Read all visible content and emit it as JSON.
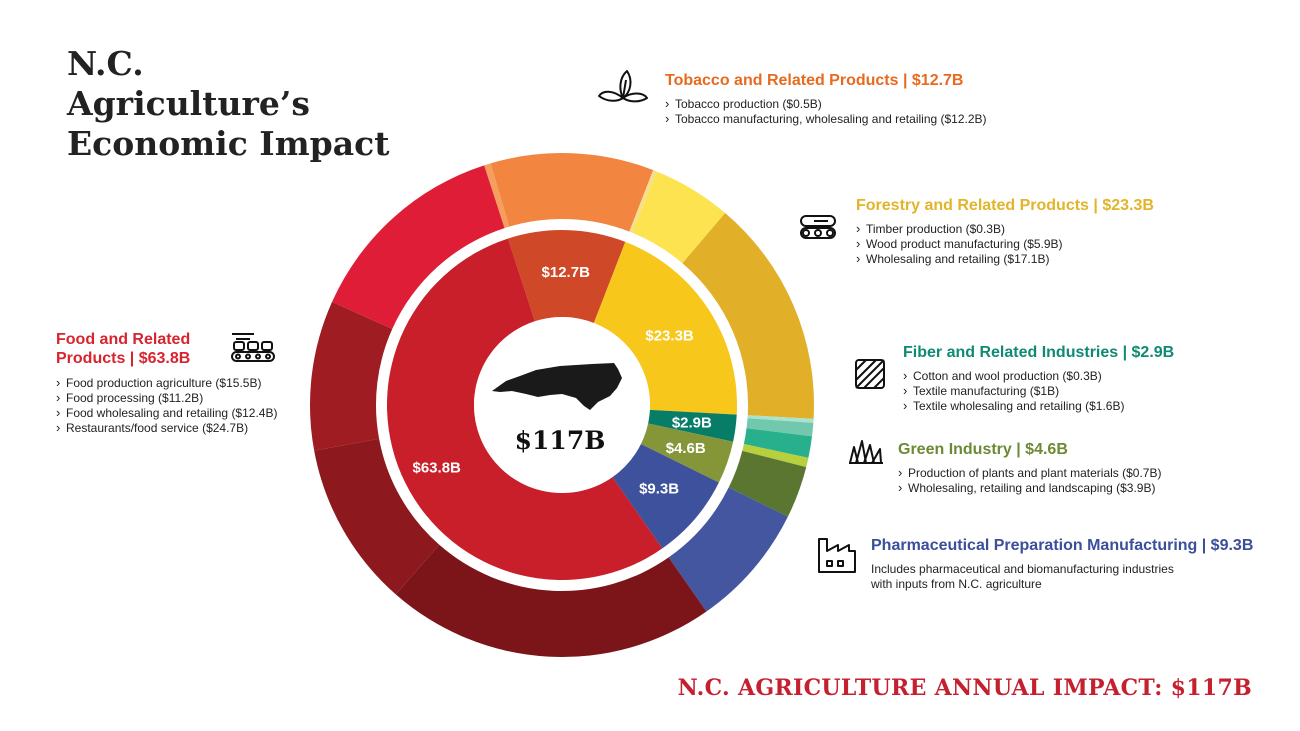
{
  "title_line1": "N.C. Agriculture’s",
  "title_line2": "Economic Impact",
  "center_value": "$117B",
  "footer": "N.C. AGRICULTURE ANNUAL IMPACT: $117B",
  "icons": {
    "tobacco": "tobacco-leaf-icon",
    "forestry": "logs-icon",
    "fiber": "fiber-icon",
    "green": "grass-icon",
    "pharma": "factory-icon",
    "food": "conveyor-icon",
    "center": "north-carolina-map-icon"
  },
  "categories_text": {
    "tobacco": {
      "title": "Tobacco and Related Products | $12.7B",
      "items": [
        "Tobacco production ($0.5B)",
        "Tobacco manufacturing, wholesaling and retailing ($12.2B)"
      ]
    },
    "forestry": {
      "title": "Forestry and Related Products | $23.3B",
      "items": [
        "Timber production ($0.3B)",
        "Wood product manufacturing ($5.9B)",
        "Wholesaling and retailing ($17.1B)"
      ]
    },
    "fiber": {
      "title": "Fiber and Related Industries | $2.9B",
      "items": [
        "Cotton and wool production ($0.3B)",
        "Textile manufacturing ($1B)",
        "Textile wholesaling and retailing ($1.6B)"
      ]
    },
    "green": {
      "title": "Green Industry | $4.6B",
      "items": [
        "Production of plants and plant materials ($0.7B)",
        "Wholesaling, retailing and landscaping ($3.9B)"
      ]
    },
    "pharma": {
      "title": "Pharmaceutical Preparation Manufacturing | $9.3B",
      "desc_line1": "Includes pharmaceutical and biomanufacturing industries",
      "desc_line2": "with inputs from N.C. agriculture"
    },
    "food": {
      "title_line1": "Food and Related",
      "title_line2": "Products | $63.8B",
      "items": [
        "Food production agriculture ($15.5B)",
        "Food processing ($11.2B)",
        "Food wholesaling and retailing ($12.4B)",
        "Restaurants/food service ($24.7B)"
      ]
    }
  },
  "colors": {
    "tobacco": "#e86a1e",
    "forestry": "#e2b42a",
    "fiber": "#0f8a73",
    "green": "#6c8a34",
    "pharma": "#3b4f9a",
    "food": "#d8242f",
    "footer": "#c4202f"
  },
  "chart_data": {
    "type": "donut",
    "total": 117,
    "inner": {
      "categories": [
        "Tobacco",
        "Forestry",
        "Fiber",
        "Green Industry",
        "Pharmaceutical",
        "Food"
      ],
      "values": [
        12.7,
        23.3,
        2.9,
        4.6,
        9.3,
        63.8
      ],
      "labels": [
        "$12.7B",
        "$23.3B",
        "$2.9B",
        "$4.6B",
        "$9.3B",
        "$63.8B"
      ],
      "colors": [
        "#cf4827",
        "#f7c71c",
        "#077d68",
        "#859639",
        "#3d519c",
        "#c81f2a"
      ]
    },
    "outer": {
      "values": [
        0.5,
        12.2,
        0.3,
        5.9,
        17.1,
        0.3,
        1.0,
        1.6,
        0.7,
        3.9,
        9.3,
        24.7,
        12.4,
        11.2,
        15.5
      ],
      "colors": [
        "#f59e5d",
        "#f2853f",
        "#f6df8c",
        "#fde350",
        "#e2af29",
        "#a8e3cf",
        "#71c8ad",
        "#28b08c",
        "#b8cf3e",
        "#5b7630",
        "#44569f",
        "#7c1519",
        "#8d181d",
        "#9f1c23",
        "#e01d36"
      ]
    }
  }
}
